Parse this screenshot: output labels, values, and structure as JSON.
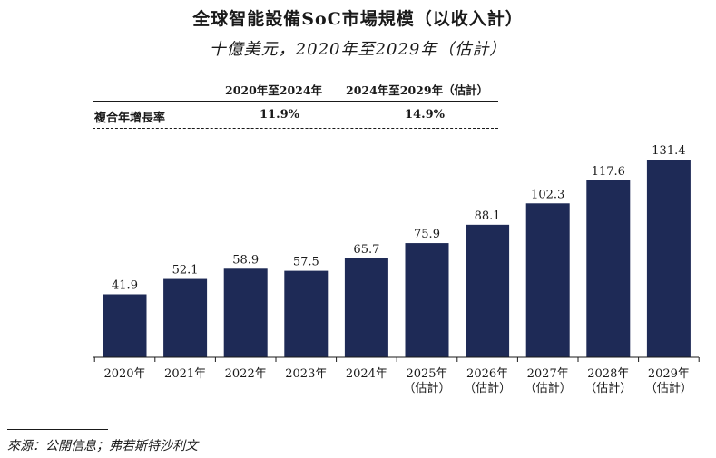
{
  "header": {
    "title": "全球智能設備SoC市場規模（以收入計）",
    "subtitle": "十億美元，2020年至2029年（估計）"
  },
  "cagr_table": {
    "col1_header": "2020年至2024年",
    "col2_header": "2024年至2029年（估計）",
    "row_label": "複合年增長率",
    "col1_value": "11.9%",
    "col2_value": "14.9%"
  },
  "footer": {
    "source": "來源：公開信息；弗若斯特沙利文"
  },
  "colors": {
    "bar": "#1e2a56",
    "axis": "#1a1a1a"
  },
  "chart_data": {
    "type": "bar",
    "title": "全球智能設備SoC市場規模（以收入計）",
    "subtitle": "十億美元，2020年至2029年（估計）",
    "xlabel": "",
    "ylabel": "",
    "categories": [
      [
        "2020年"
      ],
      [
        "2021年"
      ],
      [
        "2022年"
      ],
      [
        "2023年"
      ],
      [
        "2024年"
      ],
      [
        "2025年",
        "（估計）"
      ],
      [
        "2026年",
        "（估計）"
      ],
      [
        "2027年",
        "（估計）"
      ],
      [
        "2028年",
        "（估計）"
      ],
      [
        "2029年",
        "（估計）"
      ]
    ],
    "values": [
      41.9,
      52.1,
      58.9,
      57.5,
      65.7,
      75.9,
      88.1,
      102.3,
      117.6,
      131.4
    ],
    "data_labels": [
      "41.9",
      "52.1",
      "58.9",
      "57.5",
      "65.7",
      "75.9",
      "88.1",
      "102.3",
      "117.6",
      "131.4"
    ],
    "ylim": [
      0,
      131.4
    ],
    "grid": false,
    "legend": "none"
  }
}
